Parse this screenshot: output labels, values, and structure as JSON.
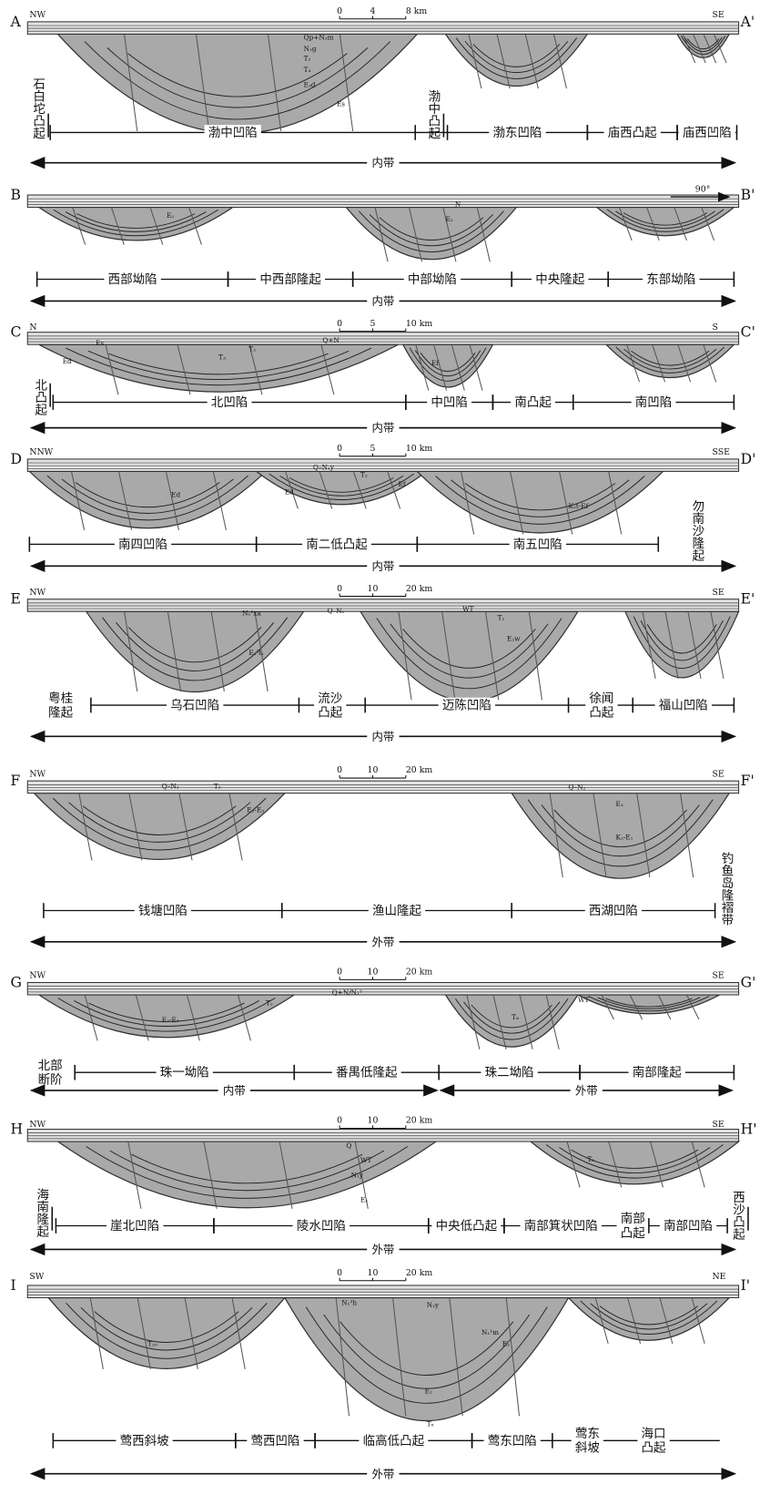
{
  "sections": [
    {
      "start": "A",
      "end": "A'",
      "left": "NW",
      "right": "SE",
      "scale": [
        "0",
        "4",
        "8 km"
      ],
      "formations": [
        "Qp+N₂m",
        "N₁g",
        "T₂",
        "T₄",
        "E₃d",
        "Es"
      ],
      "units": [
        "石白坨凸起",
        "渤中凹陷",
        "渤中凸起",
        "渤东凹陷",
        "庙西凸起",
        "庙西凹陷"
      ],
      "zones": [
        "内带"
      ]
    },
    {
      "start": "B",
      "end": "B'",
      "orientation": "90°",
      "formations": [
        "E₂",
        "N",
        "E₂"
      ],
      "units": [
        "西部坳陷",
        "中西部隆起",
        "中部坳陷",
        "中央隆起",
        "东部坳陷"
      ],
      "zones": [
        "内带"
      ]
    },
    {
      "start": "C",
      "end": "C'",
      "left": "N",
      "right": "S",
      "scale": [
        "0",
        "5",
        "10 km"
      ],
      "formations": [
        "Es",
        "Q+N",
        "T₂",
        "T₃",
        "Ed",
        "Ef"
      ],
      "units": [
        "北凸起",
        "北凹陷",
        "中凹陷",
        "南凸起",
        "南凹陷"
      ],
      "zones": [
        "内带"
      ]
    },
    {
      "start": "D",
      "end": "D'",
      "left": "NNW",
      "right": "SSE",
      "scale": [
        "0",
        "5",
        "10 km"
      ],
      "formations": [
        "Q–N₁y",
        "T₂",
        "Ed",
        "Ed",
        "Ef",
        "K₂t-Ef"
      ],
      "units": [
        "南四凹陷",
        "南二低凸起",
        "南五凹陷",
        "勿南沙隆起"
      ],
      "zones": [
        "内带"
      ]
    },
    {
      "start": "E",
      "end": "E'",
      "left": "NW",
      "right": "SE",
      "scale": [
        "0",
        "10",
        "20 km"
      ],
      "formations": [
        "N₁¹xa",
        "Q–N₂",
        "WT",
        "T₂",
        "E₂w",
        "E₂³l₁"
      ],
      "units": [
        "粤桂隆起",
        "乌石凹陷",
        "流沙凸起",
        "迈陈凹陷",
        "徐闻凸起",
        "福山凹陷"
      ],
      "zones": [
        "内带"
      ]
    },
    {
      "start": "F",
      "end": "F'",
      "left": "NW",
      "right": "SE",
      "scale": [
        "0",
        "10",
        "20 km"
      ],
      "formations": [
        "Q–N₂",
        "T₂",
        "E₃",
        "K₂-E₁",
        "E₂-E₃",
        "Q–N₂"
      ],
      "units": [
        "钱塘凹陷",
        "渔山隆起",
        "西湖凹陷",
        "钓鱼岛隆褶带"
      ],
      "zones": [
        "外带"
      ]
    },
    {
      "start": "G",
      "end": "G'",
      "left": "NW",
      "right": "SE",
      "scale": [
        "0",
        "10",
        "20 km"
      ],
      "formations": [
        "Q+N/N₁²",
        "WT",
        "E₂-E₃",
        "T₈",
        "T₂"
      ],
      "units": [
        "北部断阶",
        "珠一坳陷",
        "番禺低隆起",
        "珠二坳陷",
        "南部隆起"
      ],
      "zones": [
        "内带",
        "外带"
      ]
    },
    {
      "start": "H",
      "end": "H'",
      "left": "NW",
      "right": "SE",
      "scale": [
        "0",
        "10",
        "20 km"
      ],
      "formations": [
        "Q",
        "WT",
        "N₁y",
        "T₆",
        "E₂"
      ],
      "units": [
        "海南隆起",
        "崖北凹陷",
        "陵水凹陷",
        "中央低凸起",
        "南部箕状凹陷",
        "南部凸起",
        "南部凹陷",
        "西沙凸起"
      ],
      "zones": [
        "外带"
      ]
    },
    {
      "start": "I",
      "end": "I'",
      "left": "SW",
      "right": "NE",
      "scale": [
        "0",
        "10",
        "20 km"
      ],
      "formations": [
        "N₁²h",
        "N₂y",
        "T₂₀",
        "E₂",
        "T₈",
        "E₂",
        "N₁¹m"
      ],
      "units": [
        "莺西斜坡",
        "莺西凹陷",
        "临高低凸起",
        "莺东凹陷",
        "莺东斜坡",
        "海口凸起"
      ],
      "zones": [
        "外带"
      ]
    }
  ]
}
